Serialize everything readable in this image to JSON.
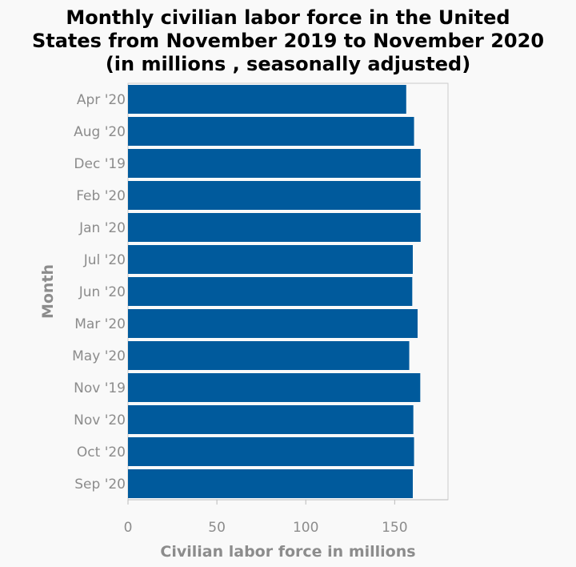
{
  "chart_data": {
    "type": "bar",
    "orientation": "horizontal",
    "title": "Monthly civilian labor force in the United States from November 2019 to November 2020 (in millions , seasonally adjusted)",
    "title_lines": [
      "Monthly civilian labor force in the United",
      "States from November 2019 to November 2020",
      "(in millions , seasonally adjusted)"
    ],
    "xlabel": "Civilian labor force in millions",
    "ylabel": "Month",
    "categories": [
      "Apr '20",
      "Aug '20",
      "Dec '19",
      "Feb '20",
      "Jan '20",
      "Jul '20",
      "Jun '20",
      "Mar '20",
      "May '20",
      "Nov '19",
      "Nov '20",
      "Oct '20",
      "Sep '20"
    ],
    "values": [
      156.5,
      160.9,
      164.6,
      164.5,
      164.6,
      160.2,
      159.9,
      162.9,
      158.2,
      164.4,
      160.5,
      160.9,
      160.2
    ],
    "xlim": [
      0,
      180
    ],
    "xticks": [
      0,
      50,
      100,
      150
    ],
    "grid": false,
    "bar_color": "#005a9c"
  }
}
